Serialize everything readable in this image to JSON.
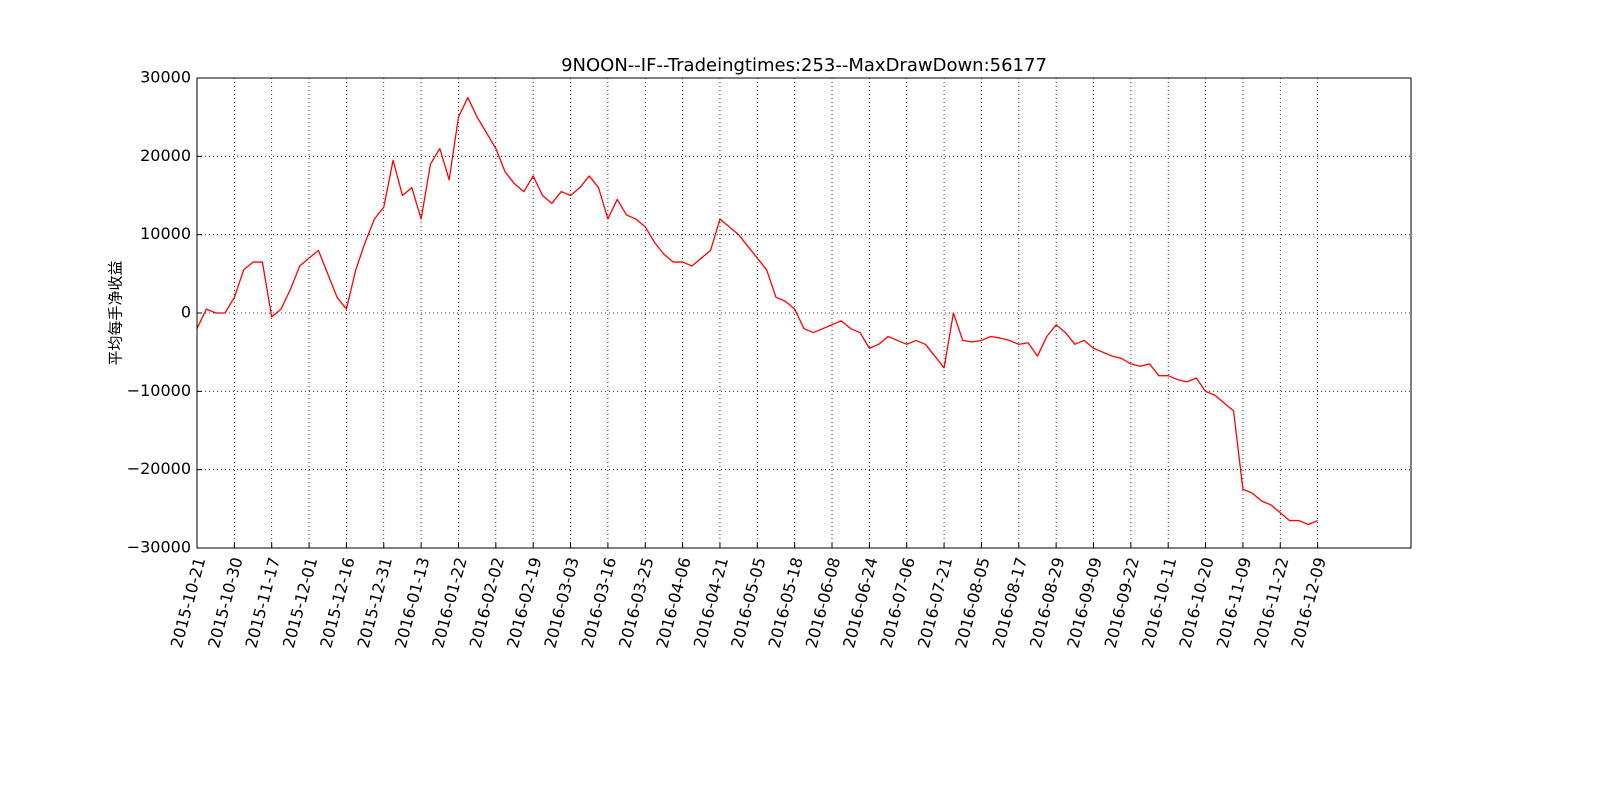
{
  "chart_data": {
    "type": "line",
    "title": "9NOON--IF--Tradeingtimes:253--MaxDrawDown:56177",
    "y_label": "平均每手净收益",
    "color": "#ff0000",
    "grid": true,
    "values": [
      -2000,
      500,
      0,
      0,
      2000,
      5500,
      6500,
      6500,
      -500,
      500,
      3000,
      6000,
      7000,
      8000,
      5000,
      2000,
      500,
      5500,
      9000,
      12000,
      13500,
      19500,
      15000,
      16000,
      12000,
      19000,
      21000,
      17000,
      25000,
      27500,
      25000,
      23000,
      21000,
      18000,
      16500,
      15500,
      17500,
      15000,
      14000,
      15500,
      15000,
      16000,
      17500,
      16000,
      12000,
      14500,
      12500,
      12000,
      11000,
      9000,
      7500,
      6500,
      6500,
      6000,
      7000,
      8000,
      12000,
      11000,
      10000,
      8500,
      7000,
      5500,
      2000,
      1500,
      500,
      -2000,
      -2500,
      -2000,
      -1500,
      -1000,
      -2000,
      -2500,
      -4500,
      -4000,
      -3000,
      -3500,
      -4000,
      -3500,
      -4000,
      -5500,
      -7000,
      0,
      -3500,
      -3700,
      -3500,
      -3000,
      -3200,
      -3500,
      -4000,
      -3800,
      -5500,
      -3000,
      -1500,
      -2500,
      -4000,
      -3500,
      -4500,
      -5000,
      -5500,
      -5800,
      -6500,
      -6800,
      -6500,
      -8000,
      -8000,
      -8500,
      -8800,
      -8300,
      -10000,
      -10500,
      -11500,
      -12500,
      -22500,
      -23000,
      -24000,
      -24500,
      -25500,
      -26500,
      -26500,
      -27000,
      -26500
    ],
    "xlim": [
      0,
      130
    ],
    "xticks": [
      {
        "value": 0,
        "label": "2015-10-21"
      },
      {
        "value": 4,
        "label": "2015-10-30"
      },
      {
        "value": 8,
        "label": "2015-11-17"
      },
      {
        "value": 12,
        "label": "2015-12-01"
      },
      {
        "value": 16,
        "label": "2015-12-16"
      },
      {
        "value": 20,
        "label": "2015-12-31"
      },
      {
        "value": 24,
        "label": "2016-01-13"
      },
      {
        "value": 28,
        "label": "2016-01-22"
      },
      {
        "value": 32,
        "label": "2016-02-02"
      },
      {
        "value": 36,
        "label": "2016-02-19"
      },
      {
        "value": 40,
        "label": "2016-03-03"
      },
      {
        "value": 44,
        "label": "2016-03-16"
      },
      {
        "value": 48,
        "label": "2016-03-25"
      },
      {
        "value": 52,
        "label": "2016-04-06"
      },
      {
        "value": 56,
        "label": "2016-04-21"
      },
      {
        "value": 60,
        "label": "2016-05-05"
      },
      {
        "value": 64,
        "label": "2016-05-18"
      },
      {
        "value": 68,
        "label": "2016-06-08"
      },
      {
        "value": 72,
        "label": "2016-06-24"
      },
      {
        "value": 76,
        "label": "2016-07-06"
      },
      {
        "value": 80,
        "label": "2016-07-21"
      },
      {
        "value": 84,
        "label": "2016-08-05"
      },
      {
        "value": 88,
        "label": "2016-08-17"
      },
      {
        "value": 92,
        "label": "2016-08-29"
      },
      {
        "value": 96,
        "label": "2016-09-09"
      },
      {
        "value": 100,
        "label": "2016-09-22"
      },
      {
        "value": 104,
        "label": "2016-10-11"
      },
      {
        "value": 108,
        "label": "2016-10-20"
      },
      {
        "value": 112,
        "label": "2016-11-09"
      },
      {
        "value": 116,
        "label": "2016-11-22"
      },
      {
        "value": 120,
        "label": "2016-12-09"
      }
    ],
    "ylim": [
      -30000,
      30000
    ],
    "yticks": [
      {
        "value": -30000,
        "label": "−30000"
      },
      {
        "value": -20000,
        "label": "−20000"
      },
      {
        "value": -10000,
        "label": "−10000"
      },
      0,
      10000,
      20000,
      30000
    ]
  }
}
